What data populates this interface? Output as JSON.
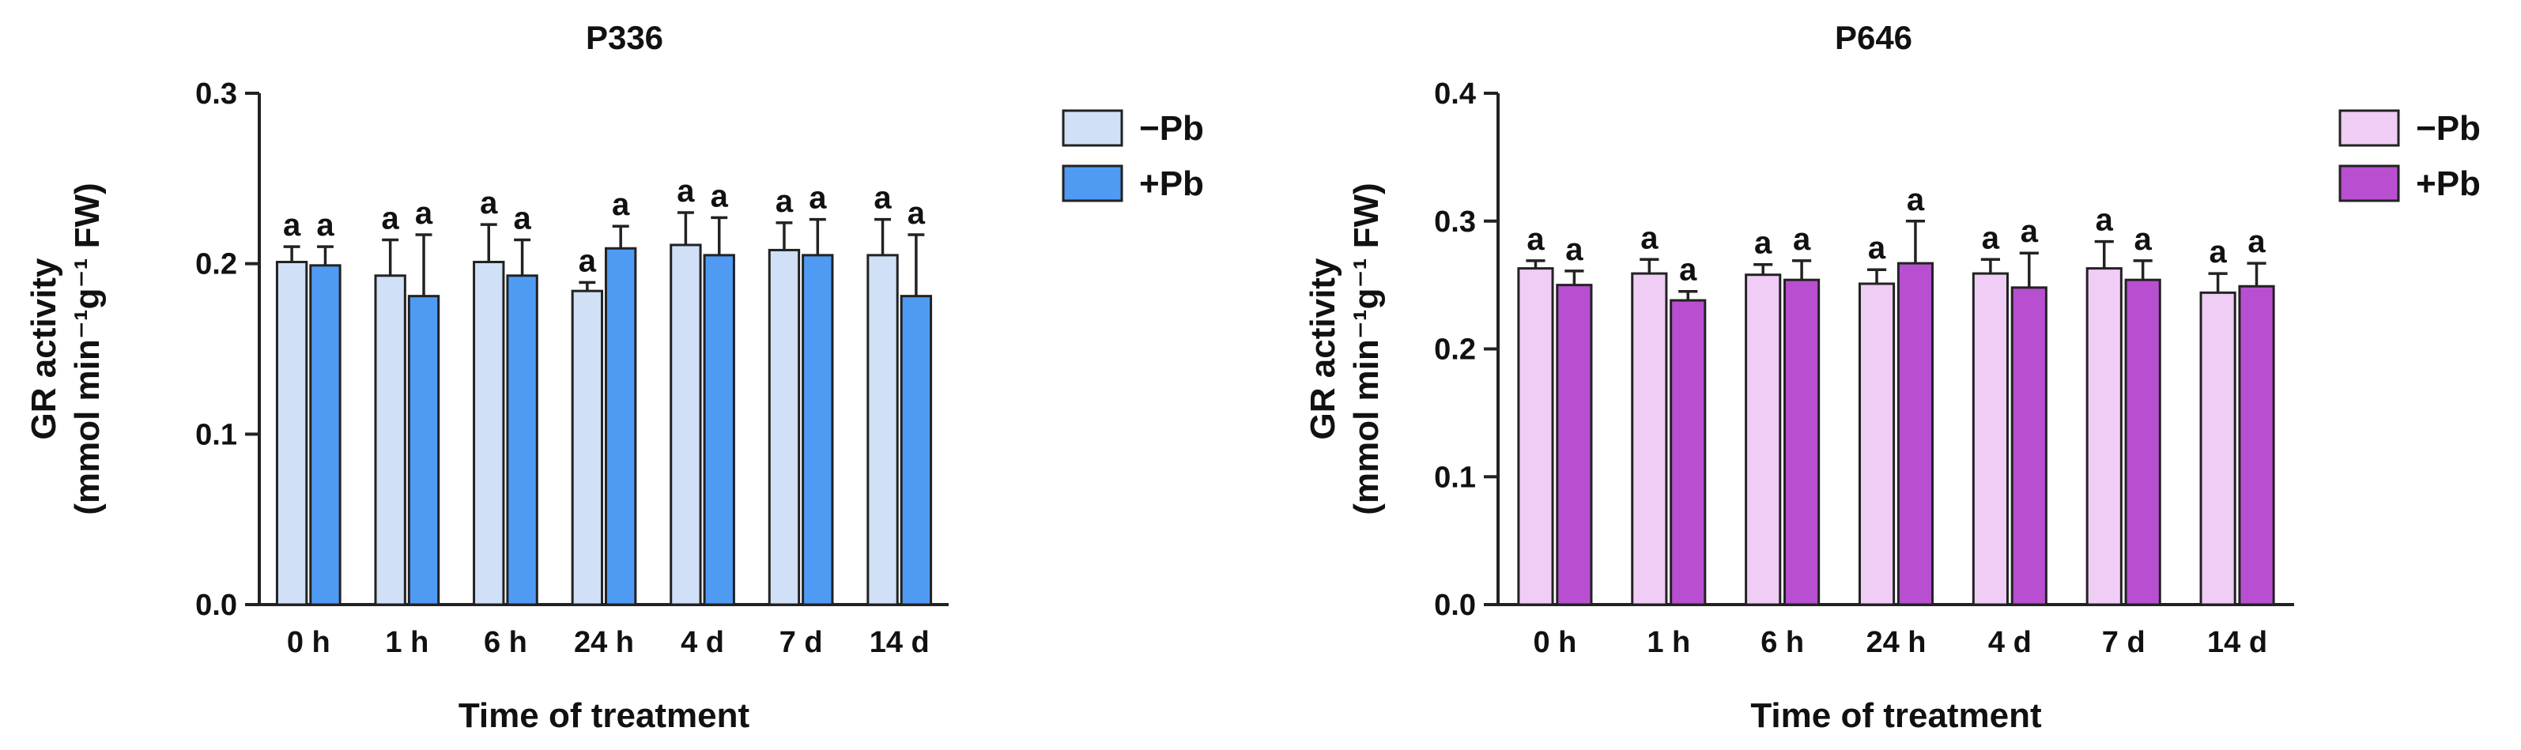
{
  "chart_data": [
    {
      "type": "bar",
      "title": "P336",
      "xlabel": "Time of treatment",
      "ylabel_line1": "GR activity",
      "ylabel_line2": "(mmol min⁻¹g⁻¹ FW)",
      "ylim": [
        0,
        0.3
      ],
      "yticks": [
        "0.0",
        "0.1",
        "0.2",
        "0.3"
      ],
      "categories": [
        "0 h",
        "1 h",
        "6 h",
        "24 h",
        "4 d",
        "7 d",
        "14 d"
      ],
      "legend_position": "top-right",
      "series": [
        {
          "name": "−Pb",
          "color": "#cfe0f7",
          "values": [
            0.201,
            0.193,
            0.201,
            0.184,
            0.211,
            0.208,
            0.205
          ],
          "errors": [
            0.009,
            0.021,
            0.022,
            0.005,
            0.019,
            0.016,
            0.021
          ],
          "labels": [
            "a",
            "a",
            "a",
            "a",
            "a",
            "a",
            "a"
          ]
        },
        {
          "name": "+Pb",
          "color": "#4f9bf3",
          "values": [
            0.199,
            0.181,
            0.193,
            0.209,
            0.205,
            0.205,
            0.181
          ],
          "errors": [
            0.011,
            0.036,
            0.021,
            0.013,
            0.022,
            0.021,
            0.036
          ],
          "labels": [
            "a",
            "a",
            "a",
            "a",
            "a",
            "a",
            "a"
          ]
        }
      ]
    },
    {
      "type": "bar",
      "title": "P646",
      "xlabel": "Time of treatment",
      "ylabel_line1": "GR activity",
      "ylabel_line2": "(mmol min⁻¹g⁻¹ FW)",
      "ylim": [
        0,
        0.4
      ],
      "yticks": [
        "0.0",
        "0.1",
        "0.2",
        "0.3",
        "0.4"
      ],
      "categories": [
        "0 h",
        "1 h",
        "6 h",
        "24 h",
        "4 d",
        "7 d",
        "14 d"
      ],
      "legend_position": "top-right",
      "series": [
        {
          "name": "−Pb",
          "color": "#f0cdf5",
          "values": [
            0.263,
            0.259,
            0.258,
            0.251,
            0.259,
            0.263,
            0.244
          ],
          "errors": [
            0.006,
            0.011,
            0.008,
            0.011,
            0.011,
            0.021,
            0.015
          ],
          "labels": [
            "a",
            "a",
            "a",
            "a",
            "a",
            "a",
            "a"
          ]
        },
        {
          "name": "+Pb",
          "color": "#b84fd1",
          "values": [
            0.25,
            0.238,
            0.254,
            0.267,
            0.248,
            0.254,
            0.249
          ],
          "errors": [
            0.011,
            0.007,
            0.015,
            0.033,
            0.027,
            0.015,
            0.018
          ],
          "labels": [
            "a",
            "a",
            "a",
            "a",
            "a",
            "a",
            "a"
          ]
        }
      ]
    }
  ]
}
